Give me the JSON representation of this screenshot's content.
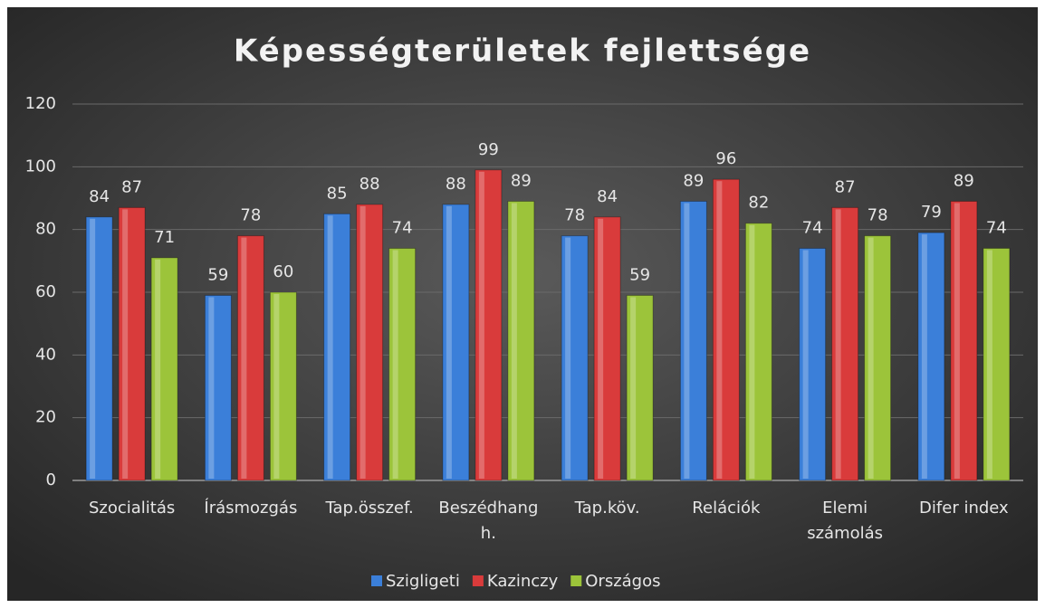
{
  "chart_data": {
    "type": "bar",
    "title": "Képességterületek fejlettsége",
    "categories": [
      "Szocialitás",
      "Írásmozgás",
      "Tap.összef.",
      "Beszédhang h.",
      "Tap.köv.",
      "Relációk",
      "Elemi számolás",
      "Difer index"
    ],
    "series": [
      {
        "name": "Szigligeti",
        "color": "#3b7fd9",
        "values": [
          84,
          59,
          85,
          88,
          78,
          89,
          74,
          79
        ]
      },
      {
        "name": "Kazinczy",
        "color": "#d93b3b",
        "values": [
          87,
          78,
          88,
          99,
          84,
          96,
          87,
          89
        ]
      },
      {
        "name": "Országos",
        "color": "#9cc43a",
        "values": [
          71,
          60,
          74,
          89,
          59,
          82,
          78,
          74
        ]
      }
    ],
    "ylim": [
      0,
      120
    ],
    "yticks": [
      0,
      20,
      40,
      60,
      80,
      100,
      120
    ],
    "grid": true,
    "legend": "bottom"
  }
}
